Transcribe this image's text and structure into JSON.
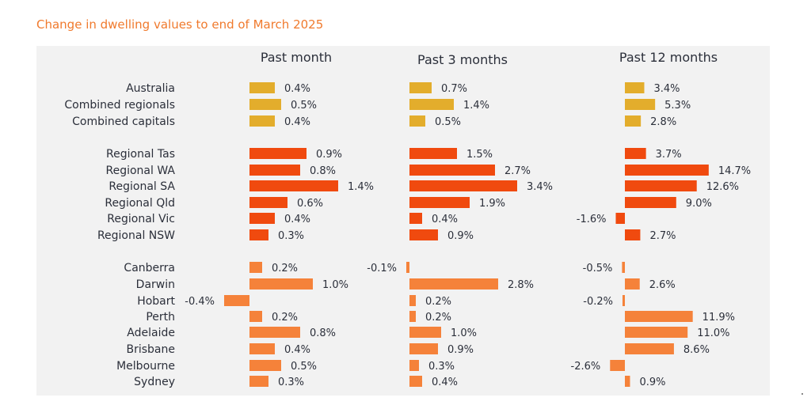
{
  "title": "Change in dwelling values to end of March 2025",
  "chart_data": {
    "type": "bar",
    "orientation": "horizontal",
    "categories": [
      "Australia",
      "Combined regionals",
      "Combined capitals",
      "Regional Tas",
      "Regional WA",
      "Regional SA",
      "Regional Qld",
      "Regional Vic",
      "Regional NSW",
      "Canberra",
      "Darwin",
      "Hobart",
      "Perth",
      "Adelaide",
      "Brisbane",
      "Melbourne",
      "Sydney"
    ],
    "groups": [
      0,
      0,
      0,
      1,
      1,
      1,
      1,
      1,
      1,
      2,
      2,
      2,
      2,
      2,
      2,
      2,
      2
    ],
    "group_colors": [
      "#e3ad2c",
      "#f04a0f",
      "#f5823a"
    ],
    "panels": [
      {
        "name": "Past month",
        "values": [
          0.4,
          0.5,
          0.4,
          0.9,
          0.8,
          1.4,
          0.6,
          0.4,
          0.3,
          0.2,
          1.0,
          -0.4,
          0.2,
          0.8,
          0.4,
          0.5,
          0.3
        ],
        "labels": [
          "0.4%",
          "0.5%",
          "0.4%",
          "0.9%",
          "0.8%",
          "1.4%",
          "0.6%",
          "0.4%",
          "0.3%",
          "0.2%",
          "1.0%",
          "-0.4%",
          "0.2%",
          "0.8%",
          "0.4%",
          "0.5%",
          "0.3%"
        ]
      },
      {
        "name": "Past 3 months",
        "values": [
          0.7,
          1.4,
          0.5,
          1.5,
          2.7,
          3.4,
          1.9,
          0.4,
          0.9,
          -0.1,
          2.8,
          0.2,
          0.2,
          1.0,
          0.9,
          0.3,
          0.4
        ],
        "labels": [
          "0.7%",
          "1.4%",
          "0.5%",
          "1.5%",
          "2.7%",
          "3.4%",
          "1.9%",
          "0.4%",
          "0.9%",
          "-0.1%",
          "2.8%",
          "0.2%",
          "0.2%",
          "1.0%",
          "0.9%",
          "0.3%",
          "0.4%"
        ]
      },
      {
        "name": "Past 12 months",
        "values": [
          3.4,
          5.3,
          2.8,
          3.7,
          14.7,
          12.6,
          9.0,
          -1.6,
          2.7,
          -0.5,
          2.6,
          -0.2,
          11.9,
          11.0,
          8.6,
          -2.6,
          0.9
        ],
        "labels": [
          "3.4%",
          "5.3%",
          "2.8%",
          "3.7%",
          "14.7%",
          "12.6%",
          "9.0%",
          "-1.6%",
          "2.7%",
          "-0.5%",
          "2.6%",
          "-0.2%",
          "11.9%",
          "11.0%",
          "8.6%",
          "-2.6%",
          "0.9%"
        ]
      }
    ]
  }
}
